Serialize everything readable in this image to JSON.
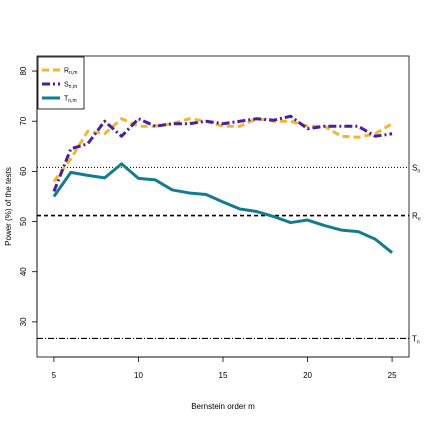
{
  "chart_data": {
    "type": "line",
    "xlabel": "Bernstein order m",
    "ylabel": "Power (%) of the tests",
    "xlim": [
      4,
      26
    ],
    "ylim": [
      23,
      83
    ],
    "xticks": [
      5,
      10,
      15,
      20,
      25
    ],
    "yticks": [
      30,
      40,
      50,
      60,
      70,
      80
    ],
    "x": [
      5,
      6,
      7,
      8,
      9,
      10,
      11,
      12,
      13,
      14,
      15,
      16,
      17,
      18,
      19,
      20,
      21,
      22,
      23,
      24,
      25
    ],
    "series": [
      {
        "name": "R",
        "sub": "n,m",
        "color": "#f2b72a",
        "dash": "7,4",
        "width": 3,
        "values": [
          58,
          62.5,
          68,
          67.5,
          70.5,
          69,
          69,
          69.5,
          70.5,
          70,
          69,
          69,
          70.5,
          70,
          70,
          69,
          69,
          67,
          66.8,
          67.5,
          69.5
        ]
      },
      {
        "name": "S",
        "sub": "n,m",
        "color": "#4b1ea0",
        "dash": "8,3,2,3",
        "width": 3,
        "values": [
          56,
          64.5,
          65.5,
          70,
          67,
          70.5,
          69,
          69.5,
          69.5,
          70,
          69.5,
          70,
          70.5,
          70.2,
          71,
          68.5,
          69,
          69,
          69,
          67,
          67.5
        ]
      },
      {
        "name": "T",
        "sub": "n,m",
        "color": "#127d8e",
        "dash": "",
        "width": 3,
        "values": [
          55,
          59.8,
          59.2,
          58.7,
          61.5,
          58.6,
          58.3,
          56.3,
          55.7,
          55.4,
          53.9,
          52.5,
          52,
          51,
          49.8,
          50.3,
          49.2,
          48.3,
          48,
          46.5,
          43.8
        ]
      }
    ],
    "reference_lines": [
      {
        "label": "S",
        "sub": "n",
        "value": 60.8,
        "dash": "1,2",
        "width": 1
      },
      {
        "label": "R",
        "sub": "n",
        "value": 51.2,
        "dash": "4,3",
        "width": 1.6
      },
      {
        "label": "T",
        "sub": "n",
        "value": 26.7,
        "dash": "6,2,1,2",
        "width": 1.2
      }
    ],
    "legend_position": "top-left",
    "grid": false
  }
}
